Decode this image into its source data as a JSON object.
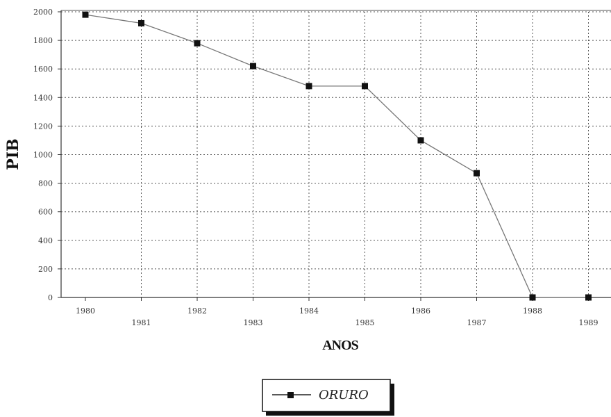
{
  "chart_data": {
    "type": "line",
    "title": "",
    "xlabel": "ANOS",
    "ylabel": "PIB",
    "x": [
      "1980",
      "1981",
      "1982",
      "1983",
      "1984",
      "1985",
      "1986",
      "1987",
      "1988",
      "1989"
    ],
    "series": [
      {
        "name": "ORURO",
        "values": [
          1980,
          1920,
          1780,
          1620,
          1480,
          1480,
          1100,
          870,
          0,
          0
        ],
        "color": "#333333"
      }
    ],
    "ylim": [
      0,
      2000
    ],
    "yticks": [
      "0",
      "200",
      "400",
      "600",
      "800",
      "1000",
      "1200",
      "1400",
      "1600",
      "1800",
      "2000"
    ],
    "grid": true,
    "legend_position": "bottom-center"
  }
}
